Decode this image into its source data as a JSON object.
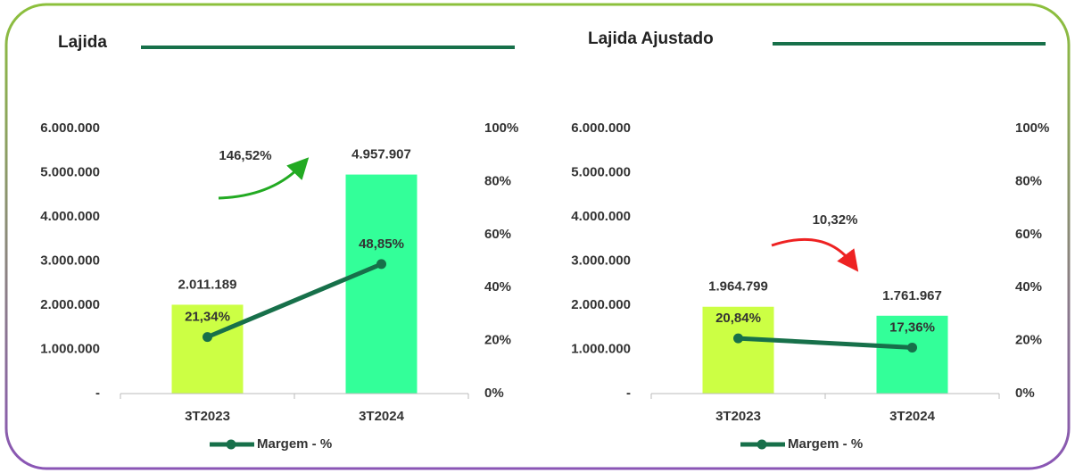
{
  "chart_data": [
    {
      "type": "bar",
      "title": "Lajida",
      "categories": [
        "3T2023",
        "3T2024"
      ],
      "values": [
        2011189,
        4957907
      ],
      "value_labels": [
        "2.011.189",
        "4.957.907"
      ],
      "colors": [
        "#ccff44",
        "#33ff99"
      ],
      "series": [
        {
          "name": "Margem - %",
          "color": "#17704a",
          "values": [
            21.34,
            48.85
          ],
          "value_labels": [
            "21,34%",
            "48,85%"
          ],
          "axis": "y2"
        }
      ],
      "ylim": [
        0,
        6000000
      ],
      "yticks": [
        {
          "value": 0,
          "label": "-"
        },
        {
          "value": 1000000,
          "label": "1.000.000"
        },
        {
          "value": 2000000,
          "label": "2.000.000"
        },
        {
          "value": 3000000,
          "label": "3.000.000"
        },
        {
          "value": 4000000,
          "label": "4.000.000"
        },
        {
          "value": 5000000,
          "label": "5.000.000"
        },
        {
          "value": 6000000,
          "label": "6.000.000"
        }
      ],
      "y2lim": [
        0,
        100
      ],
      "y2ticks": [
        {
          "value": 0,
          "label": "0%"
        },
        {
          "value": 20,
          "label": "20%"
        },
        {
          "value": 40,
          "label": "40%"
        },
        {
          "value": 60,
          "label": "60%"
        },
        {
          "value": 80,
          "label": "80%"
        },
        {
          "value": 100,
          "label": "100%"
        }
      ],
      "annotation": {
        "text": "146,52%",
        "color": "#22aa22"
      }
    },
    {
      "type": "bar",
      "title": "Lajida Ajustado",
      "categories": [
        "3T2023",
        "3T2024"
      ],
      "values": [
        1964799,
        1761967
      ],
      "value_labels": [
        "1.964.799",
        "1.761.967"
      ],
      "colors": [
        "#ccff44",
        "#33ff99"
      ],
      "series": [
        {
          "name": "Margem - %",
          "color": "#17704a",
          "values": [
            20.84,
            17.36
          ],
          "value_labels": [
            "20,84%",
            "17,36%"
          ],
          "axis": "y2"
        }
      ],
      "ylim": [
        0,
        6000000
      ],
      "yticks": [
        {
          "value": 0,
          "label": "-"
        },
        {
          "value": 1000000,
          "label": "1.000.000"
        },
        {
          "value": 2000000,
          "label": "2.000.000"
        },
        {
          "value": 3000000,
          "label": "3.000.000"
        },
        {
          "value": 4000000,
          "label": "4.000.000"
        },
        {
          "value": 5000000,
          "label": "5.000.000"
        },
        {
          "value": 6000000,
          "label": "6.000.000"
        }
      ],
      "y2lim": [
        0,
        100
      ],
      "y2ticks": [
        {
          "value": 0,
          "label": "0%"
        },
        {
          "value": 20,
          "label": "20%"
        },
        {
          "value": 40,
          "label": "40%"
        },
        {
          "value": 60,
          "label": "60%"
        },
        {
          "value": 80,
          "label": "80%"
        },
        {
          "value": 100,
          "label": "100%"
        }
      ],
      "annotation": {
        "text": "10,32%",
        "color": "#ee2222"
      }
    }
  ]
}
